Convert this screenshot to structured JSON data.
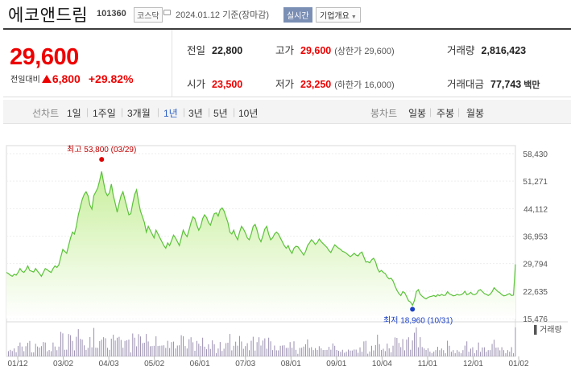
{
  "header": {
    "name": "에코앤드림",
    "code": "101360",
    "market": "코스닥",
    "date": "2024.01.12",
    "basis": "기준(장마감)",
    "realtime": "실시간",
    "company_info": "기업개요",
    "company_info_icon": "chevron-down-icon"
  },
  "summary": {
    "price": "29,600",
    "change_label": "전일대비",
    "change": "6,800",
    "change_pct": "+29.82%",
    "change_icon": "arrow-up-icon",
    "prev_close_label": "전일",
    "prev_close": "22,800",
    "high_label": "고가",
    "high": "29,600",
    "upper_limit": "(상한가 29,600)",
    "volume_label": "거래량",
    "volume": "2,816,423",
    "open_label": "시가",
    "open": "23,500",
    "low_label": "저가",
    "low": "23,250",
    "lower_limit": "(하한가 16,000)",
    "amount_label": "거래대금",
    "amount": "77,743",
    "amount_unit": "백만"
  },
  "periods": {
    "line_chart_label": "선차트",
    "options": [
      "1일",
      "1주일",
      "3개월",
      "1년",
      "3년",
      "5년",
      "10년"
    ],
    "selected": "1년",
    "candle_chart_label": "봉차트",
    "candle_options": [
      "일봉",
      "주봉",
      "월봉"
    ]
  },
  "colors": {
    "up": "#e00000",
    "down": "#1a3fc5",
    "line": "#5bc23a",
    "fill": "#c8ef9c",
    "selected": "#2d5fc9"
  },
  "chart_data": {
    "type": "area",
    "y_ticks": [
      "58,430",
      "51,271",
      "44,112",
      "36,953",
      "29,794",
      "22,635",
      "15,476"
    ],
    "ylim": [
      15476,
      58430
    ],
    "x_ticks": [
      "01/12",
      "03/02",
      "04/03",
      "05/02",
      "06/01",
      "07/03",
      "08/01",
      "09/01",
      "10/04",
      "11/01",
      "12/01",
      "01/02"
    ],
    "max_label": "최고 53,800 (03/29)",
    "min_label": "최저 18,960 (10/31)",
    "volume_label": "거래량",
    "series": [
      {
        "values": [
          27500,
          27200,
          26800,
          26500,
          27000,
          26800,
          27500,
          28500,
          27800,
          27500,
          28200,
          29200,
          28000,
          27800,
          27600,
          28500,
          27800,
          27200,
          26500,
          27500,
          28500,
          28200,
          27800,
          27500,
          28500,
          29200,
          28800,
          29500,
          31500,
          33500,
          33000,
          32500,
          34500,
          36500,
          38000,
          37500,
          39500,
          42500,
          44500,
          46500,
          47800,
          48500,
          47500,
          45000,
          44000,
          47500,
          48500,
          49500,
          51500,
          53800,
          51000,
          48500,
          47500,
          48200,
          50500,
          47500,
          45500,
          43200,
          45500,
          47500,
          48500,
          46500,
          44500,
          42500,
          42800,
          45500,
          47800,
          49000,
          46000,
          43500,
          42000,
          40500,
          38000,
          39500,
          38500,
          37500,
          36500,
          38500,
          37500,
          36500,
          35500,
          34500,
          33800,
          35200,
          34500,
          35800,
          37200,
          36500,
          35500,
          34500,
          36500,
          38500,
          37500,
          36800,
          38500,
          40500,
          42000,
          41500,
          39800,
          38500,
          39500,
          41500,
          42500,
          41800,
          40500,
          39800,
          41500,
          42800,
          43000,
          42200,
          43800,
          44300,
          43500,
          42000,
          40500,
          38000,
          37500,
          38500,
          37000,
          36000,
          38000,
          39500,
          38800,
          37800,
          36500,
          36000,
          37500,
          39500,
          40000,
          38500,
          36500,
          35500,
          37000,
          38800,
          39500,
          37500,
          36000,
          36500,
          37500,
          38000,
          37500,
          36500,
          35500,
          34500,
          33800,
          34500,
          33200,
          32500,
          33800,
          34300,
          34200,
          33500,
          32800,
          32000,
          33000,
          34500,
          35200,
          36000,
          35500,
          34800,
          35300,
          36200,
          35500,
          35000,
          34500,
          34000,
          33200,
          32700,
          33800,
          34700,
          34200,
          33800,
          33500,
          33000,
          32800,
          32500,
          32000,
          31600,
          32000,
          32500,
          32000,
          31800,
          32500,
          32800,
          31500,
          30200,
          30300,
          30000,
          30800,
          31200,
          30300,
          28500,
          27600,
          28000,
          27500,
          27200,
          26300,
          25800,
          26000,
          25300,
          24000,
          22800,
          22000,
          21500,
          22500,
          22200,
          21200,
          20100,
          19800,
          18960,
          20200,
          22500,
          23000,
          21800,
          21300,
          20900,
          20600,
          21000,
          21200,
          21300,
          21500,
          21200,
          21700,
          21400,
          21800,
          21500,
          21600,
          22500,
          21900,
          21700,
          21400,
          21500,
          21800,
          21600,
          21700,
          22000,
          22600,
          21700,
          21900,
          22300,
          21800,
          21700,
          22000,
          22800,
          23000,
          22500,
          22000,
          21800,
          21500,
          21800,
          22500,
          23500,
          23000,
          22500,
          22200,
          21700,
          21400,
          21500,
          21800,
          22000,
          21500,
          21600,
          29600
        ]
      }
    ]
  }
}
